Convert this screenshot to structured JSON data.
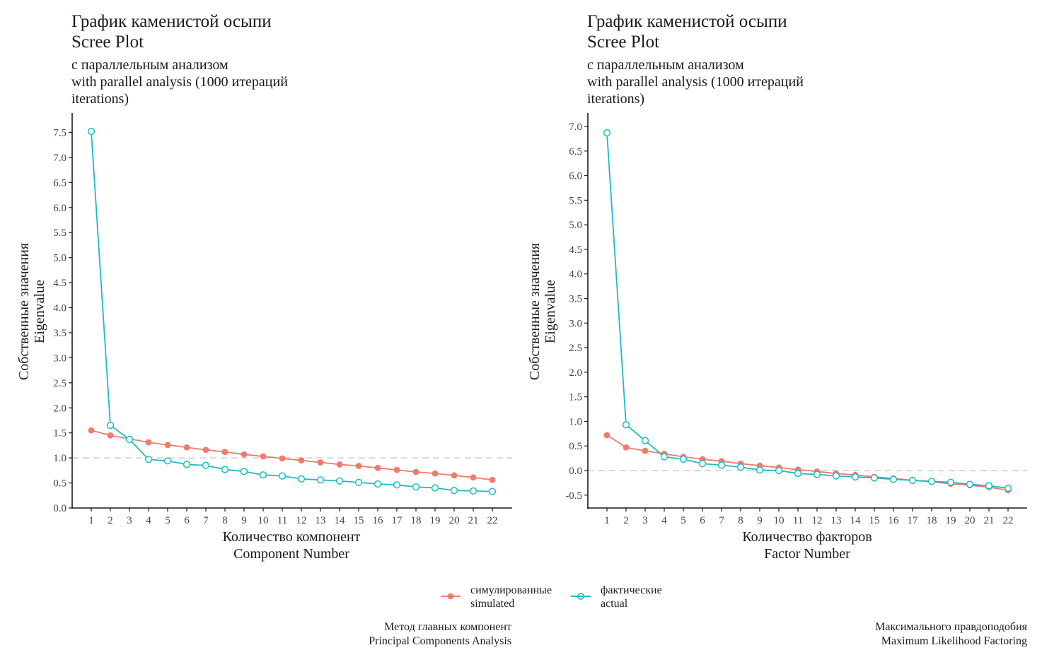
{
  "panels": [
    {
      "title": "График каменистой осыпи",
      "title_en": "Scree Plot",
      "subtitle": "с параллельным анализом",
      "subtitle_en": "with parallel analysis (1000 итераций",
      "subtitle_en2": "iterations)",
      "caption": "Метод главных компонент",
      "caption_en": "Principal Components Analysis"
    },
    {
      "title": "График каменистой осыпи",
      "title_en": "Scree Plot",
      "subtitle": "с параллельным анализом",
      "subtitle_en": "with parallel analysis (1000 итераций",
      "subtitle_en2": "iterations)",
      "caption": "Максимального правдоподобия",
      "caption_en": "Maximum Likelihood Factoring"
    }
  ],
  "legend": {
    "simulated_label": "симулированные",
    "simulated_label_en": "simulated",
    "actual_label": "фактические",
    "actual_label_en": "actual"
  },
  "colors": {
    "simulated": "#F07A6E",
    "actual": "#1CBCC4",
    "reference": "#CCCCCC",
    "axis": "#1a1a1a"
  },
  "chart_data": [
    {
      "type": "line",
      "title": "График каменистой осыпи / Scree Plot",
      "subtitle": "с параллельным анализом / with parallel analysis (1000 итераций iterations)",
      "xlabel": "Количество компонент",
      "xlabel_en": "Component Number",
      "ylabel": "Собственные значения",
      "ylabel_en": "Eigenvalue",
      "x": [
        1,
        2,
        3,
        4,
        5,
        6,
        7,
        8,
        9,
        10,
        11,
        12,
        13,
        14,
        15,
        16,
        17,
        18,
        19,
        20,
        21,
        22
      ],
      "ylim": [
        0,
        7.5
      ],
      "yticks": [
        0.0,
        0.5,
        1.0,
        1.5,
        2.0,
        2.5,
        3.0,
        3.5,
        4.0,
        4.5,
        5.0,
        5.5,
        6.0,
        6.5,
        7.0,
        7.5
      ],
      "ytick_labels": [
        "0.0",
        "0.5",
        "1.0",
        "1.5",
        "2.0",
        "2.5",
        "3.0",
        "3.5",
        "4.0",
        "4.5",
        "5.0",
        "5.5",
        "6.0",
        "6.5",
        "7.0",
        "7.5"
      ],
      "reference_line": 1.0,
      "series": [
        {
          "name": "симулированные / simulated",
          "key": "simulated",
          "values": [
            1.55,
            1.45,
            1.38,
            1.31,
            1.26,
            1.21,
            1.16,
            1.12,
            1.07,
            1.03,
            0.99,
            0.95,
            0.91,
            0.87,
            0.84,
            0.8,
            0.76,
            0.72,
            0.69,
            0.65,
            0.61,
            0.56
          ]
        },
        {
          "name": "фактические / actual",
          "key": "actual",
          "values": [
            7.52,
            1.65,
            1.37,
            0.97,
            0.94,
            0.87,
            0.85,
            0.77,
            0.73,
            0.66,
            0.64,
            0.58,
            0.56,
            0.54,
            0.51,
            0.48,
            0.46,
            0.42,
            0.4,
            0.35,
            0.34,
            0.33
          ]
        }
      ]
    },
    {
      "type": "line",
      "title": "График каменистой осыпи / Scree Plot",
      "subtitle": "с параллельным анализом / with parallel analysis (1000 итераций iterations)",
      "xlabel": "Количество факторов",
      "xlabel_en": "Factor Number",
      "ylabel": "Собственные значения",
      "ylabel_en": "Eigenvalue",
      "x": [
        1,
        2,
        3,
        4,
        5,
        6,
        7,
        8,
        9,
        10,
        11,
        12,
        13,
        14,
        15,
        16,
        17,
        18,
        19,
        20,
        21,
        22
      ],
      "ylim": [
        -0.5,
        7.0
      ],
      "yticks": [
        -0.5,
        0.0,
        0.5,
        1.0,
        1.5,
        2.0,
        2.5,
        3.0,
        3.5,
        4.0,
        4.5,
        5.0,
        5.5,
        6.0,
        6.5,
        7.0
      ],
      "ytick_labels": [
        "-0.5",
        "0.0",
        "0.5",
        "1.0",
        "1.5",
        "2.0",
        "2.5",
        "3.0",
        "3.5",
        "4.0",
        "4.5",
        "5.0",
        "5.5",
        "6.0",
        "6.5",
        "7.0"
      ],
      "reference_line": 0.0,
      "series": [
        {
          "name": "симулированные / simulated",
          "key": "simulated",
          "values": [
            0.72,
            0.47,
            0.4,
            0.34,
            0.28,
            0.23,
            0.19,
            0.14,
            0.1,
            0.06,
            0.02,
            -0.02,
            -0.06,
            -0.09,
            -0.13,
            -0.16,
            -0.2,
            -0.23,
            -0.27,
            -0.3,
            -0.34,
            -0.4
          ]
        },
        {
          "name": "фактические / actual",
          "key": "actual",
          "values": [
            6.87,
            0.93,
            0.61,
            0.28,
            0.23,
            0.14,
            0.11,
            0.07,
            0.01,
            0.0,
            -0.06,
            -0.08,
            -0.11,
            -0.13,
            -0.15,
            -0.18,
            -0.2,
            -0.22,
            -0.24,
            -0.28,
            -0.31,
            -0.36
          ]
        }
      ]
    }
  ]
}
